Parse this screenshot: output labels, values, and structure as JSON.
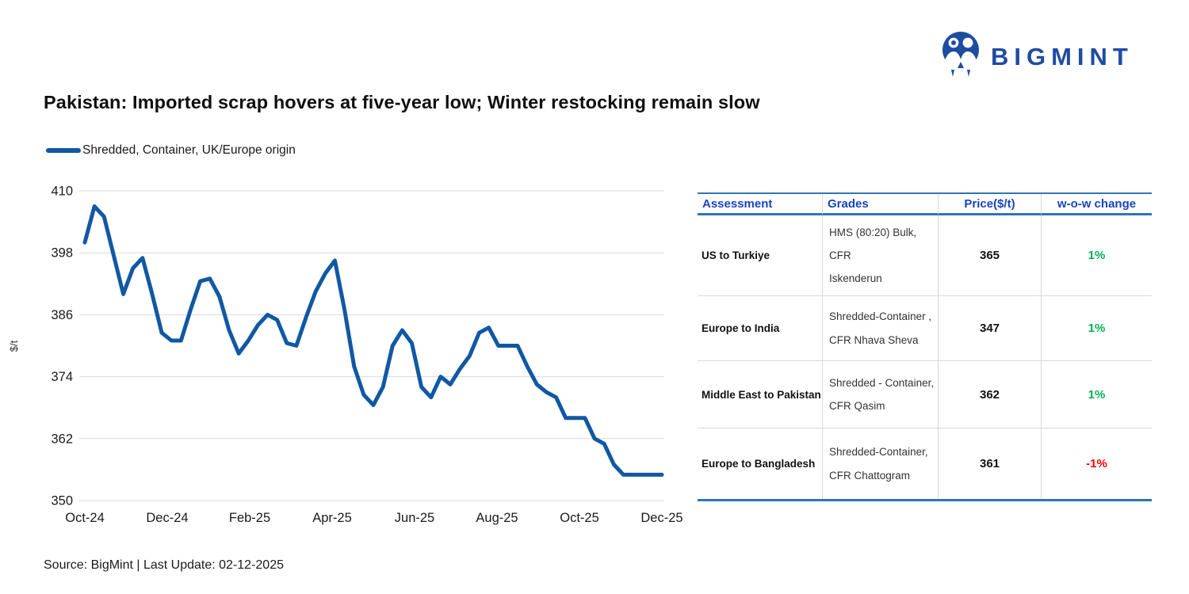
{
  "logo": {
    "text": "BIGMINT",
    "color": "#1E4CA1"
  },
  "title": {
    "text": "Pakistan: Imported scrap hovers at five-year low; Winter restocking remain slow"
  },
  "legend": {
    "label": "Shredded, Container, UK/Europe origin"
  },
  "chart_data": {
    "type": "line",
    "title": "",
    "xlabel": "",
    "ylabel": "$/t",
    "ylim": [
      350,
      410
    ],
    "yticks": [
      350,
      362,
      374,
      386,
      398,
      410
    ],
    "xtick_labels": [
      "Oct-24",
      "Dec-24",
      "Feb-25",
      "Apr-25",
      "Jun-25",
      "Aug-25",
      "Oct-25",
      "Dec-25"
    ],
    "grid": "horizontal",
    "gridline_color": "#D9D9D9",
    "legend_position": "top-left",
    "series": [
      {
        "name": "Shredded, Container, UK/Europe origin",
        "color": "#1158A4",
        "frequency": "weekly",
        "x_range": [
          "Oct-24",
          "Dec-25"
        ],
        "values": [
          400,
          407,
          405,
          397.5,
          390,
          395,
          397,
          390,
          382.5,
          381,
          381,
          387,
          392.5,
          393,
          389.5,
          383,
          378.5,
          381,
          384,
          386,
          385,
          380.5,
          380,
          385.5,
          390.5,
          394,
          396.5,
          387,
          376,
          370.5,
          368.5,
          372,
          380,
          383,
          380.5,
          372,
          370,
          374,
          372.5,
          375.5,
          378,
          382.5,
          383.5,
          380,
          380,
          380,
          376,
          372.5,
          371,
          370,
          366,
          366,
          366,
          362,
          361,
          357,
          355,
          355,
          355,
          355,
          355
        ]
      }
    ]
  },
  "table": {
    "headers": [
      "Assessment",
      "Grades",
      "Price($/t)",
      "w-o-w change"
    ],
    "positive_color": "#00B050",
    "negative_color": "#FF0000",
    "rows": [
      {
        "assessment": "US to Turkiye",
        "grades": [
          "HMS (80:20) Bulk, CFR",
          "Iskenderun"
        ],
        "price": "365",
        "change": "1%",
        "change_color": "#00B050"
      },
      {
        "assessment": "Europe to India",
        "grades": [
          "Shredded-Container ,",
          "CFR Nhava Sheva"
        ],
        "price": "347",
        "change": "1%",
        "change_color": "#00B050"
      },
      {
        "assessment": "Middle East to Pakistan",
        "grades": [
          "Shredded - Container,",
          "CFR Qasim"
        ],
        "price": "362",
        "change": "1%",
        "change_color": "#00B050"
      },
      {
        "assessment": "Europe to Bangladesh",
        "grades": [
          "Shredded-Container,",
          "CFR Chattogram"
        ],
        "price": "361",
        "change": "-1%",
        "change_color": "#FF0000"
      }
    ]
  },
  "footer": {
    "source": "Source: BigMint | Last Update: 02-12-2025"
  }
}
